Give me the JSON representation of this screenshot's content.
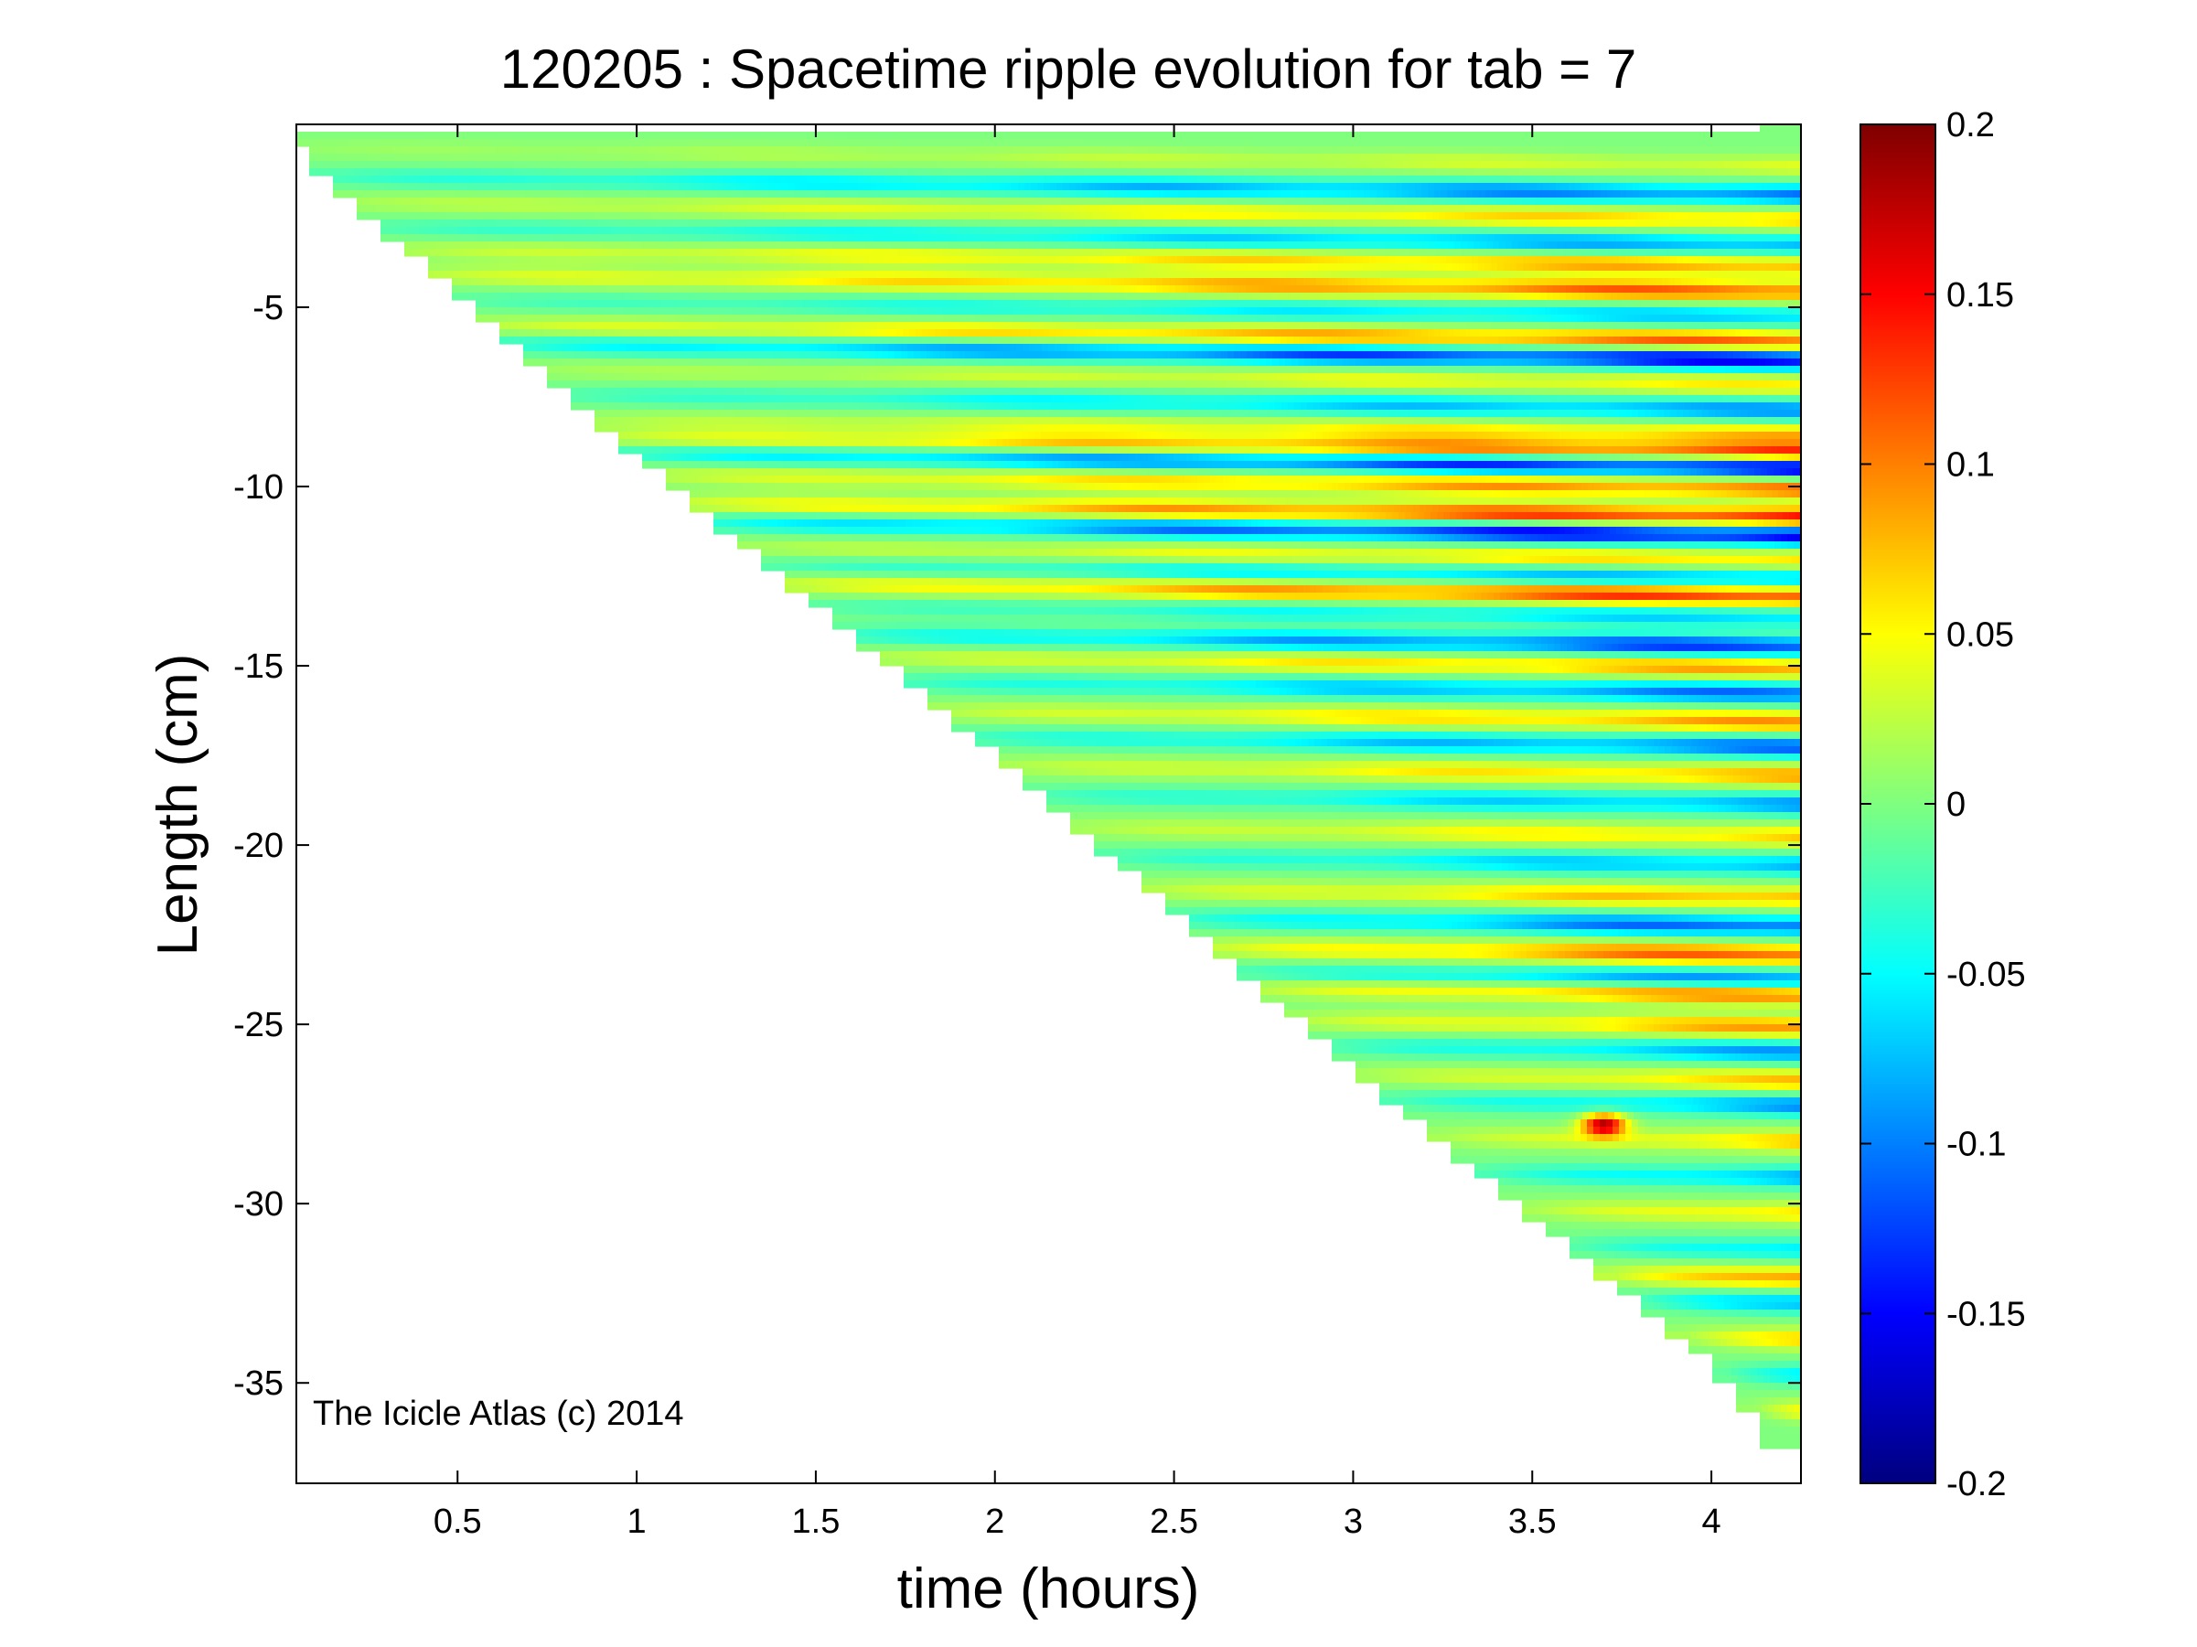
{
  "chart_data": {
    "type": "heatmap",
    "title": "120205 : Spacetime ripple evolution for tab = 7",
    "xlabel": "time (hours)",
    "ylabel": "Length (cm)",
    "xlim": [
      0.05,
      4.25
    ],
    "ylim": [
      -37.8,
      0.1
    ],
    "xticks": [
      0.5,
      1,
      1.5,
      2,
      2.5,
      3,
      3.5,
      4
    ],
    "xtick_labels": [
      "0.5",
      "1",
      "1.5",
      "2",
      "2.5",
      "3",
      "3.5",
      "4"
    ],
    "yticks": [
      -5,
      -10,
      -15,
      -20,
      -25,
      -30,
      -35
    ],
    "ytick_labels": [
      "-5",
      "-10",
      "-15",
      "-20",
      "-25",
      "-30",
      "-35"
    ],
    "colorbar": {
      "colormap": "jet",
      "clim": [
        -0.2,
        0.2
      ],
      "ticks": [
        0.2,
        0.15,
        0.1,
        0.05,
        0,
        -0.05,
        -0.1,
        -0.15,
        -0.2
      ],
      "tick_labels": [
        "0.2",
        "0.15",
        "0.1",
        "0.05",
        "0",
        "-0.05",
        "-0.1",
        "-0.15",
        "-0.2"
      ]
    },
    "data_boundary": {
      "description_points": [
        [
          0.05,
          -0.1
        ],
        [
          0.12,
          -1.0
        ],
        [
          1.0,
          -8.9
        ],
        [
          2.0,
          -17.2
        ],
        [
          3.0,
          -26.0
        ],
        [
          4.0,
          -34.2
        ],
        [
          4.2,
          -36.6
        ]
      ]
    },
    "ripple_bands": [
      {
        "y": -0.8,
        "peak": 0.04
      },
      {
        "y": -1.6,
        "peak": -0.12
      },
      {
        "y": -2.3,
        "peak": 0.08
      },
      {
        "y": -3.0,
        "peak": -0.1
      },
      {
        "y": -3.6,
        "peak": 0.1
      },
      {
        "y": -4.3,
        "peak": 0.13
      },
      {
        "y": -5.0,
        "peak": -0.08
      },
      {
        "y": -5.7,
        "peak": 0.13
      },
      {
        "y": -6.2,
        "peak": -0.18
      },
      {
        "y": -6.9,
        "peak": 0.06
      },
      {
        "y": -7.6,
        "peak": -0.1
      },
      {
        "y": -8.3,
        "peak": 0.08
      },
      {
        "y": -8.8,
        "peak": 0.15
      },
      {
        "y": -9.2,
        "peak": -0.19
      },
      {
        "y": -9.8,
        "peak": 0.12
      },
      {
        "y": -10.6,
        "peak": 0.17
      },
      {
        "y": -11.1,
        "peak": -0.2
      },
      {
        "y": -11.8,
        "peak": 0.08
      },
      {
        "y": -12.3,
        "peak": -0.1
      },
      {
        "y": -12.8,
        "peak": 0.16
      },
      {
        "y": -13.4,
        "peak": -0.08
      },
      {
        "y": -14.2,
        "peak": -0.15
      },
      {
        "y": -14.8,
        "peak": 0.1
      },
      {
        "y": -15.5,
        "peak": -0.12
      },
      {
        "y": -16.3,
        "peak": 0.1
      },
      {
        "y": -17.0,
        "peak": -0.12
      },
      {
        "y": -17.8,
        "peak": 0.09
      },
      {
        "y": -18.6,
        "peak": -0.1
      },
      {
        "y": -19.5,
        "peak": 0.08
      },
      {
        "y": -20.3,
        "peak": -0.1
      },
      {
        "y": -21.2,
        "peak": 0.1
      },
      {
        "y": -22.0,
        "peak": -0.14
      },
      {
        "y": -22.8,
        "peak": 0.14
      },
      {
        "y": -23.5,
        "peak": -0.12
      },
      {
        "y": -23.9,
        "peak": 0.13
      },
      {
        "y": -24.8,
        "peak": 0.1
      },
      {
        "y": -25.5,
        "peak": -0.1
      },
      {
        "y": -26.3,
        "peak": 0.08
      },
      {
        "y": -27.0,
        "peak": -0.1
      },
      {
        "y": -28.0,
        "peak": 0.08
      },
      {
        "y": -29.0,
        "peak": -0.1
      },
      {
        "y": -30.0,
        "peak": 0.08
      },
      {
        "y": -31.0,
        "peak": -0.08
      },
      {
        "y": -31.8,
        "peak": 0.12
      },
      {
        "y": -32.5,
        "peak": -0.1
      },
      {
        "y": -33.5,
        "peak": 0.08
      },
      {
        "y": -34.5,
        "peak": -0.06
      },
      {
        "y": -35.5,
        "peak": 0.05
      }
    ],
    "hotspot": {
      "x": 3.7,
      "y": -27.8,
      "value": 0.2
    }
  },
  "watermark": "The Icicle Atlas (c) 2014"
}
